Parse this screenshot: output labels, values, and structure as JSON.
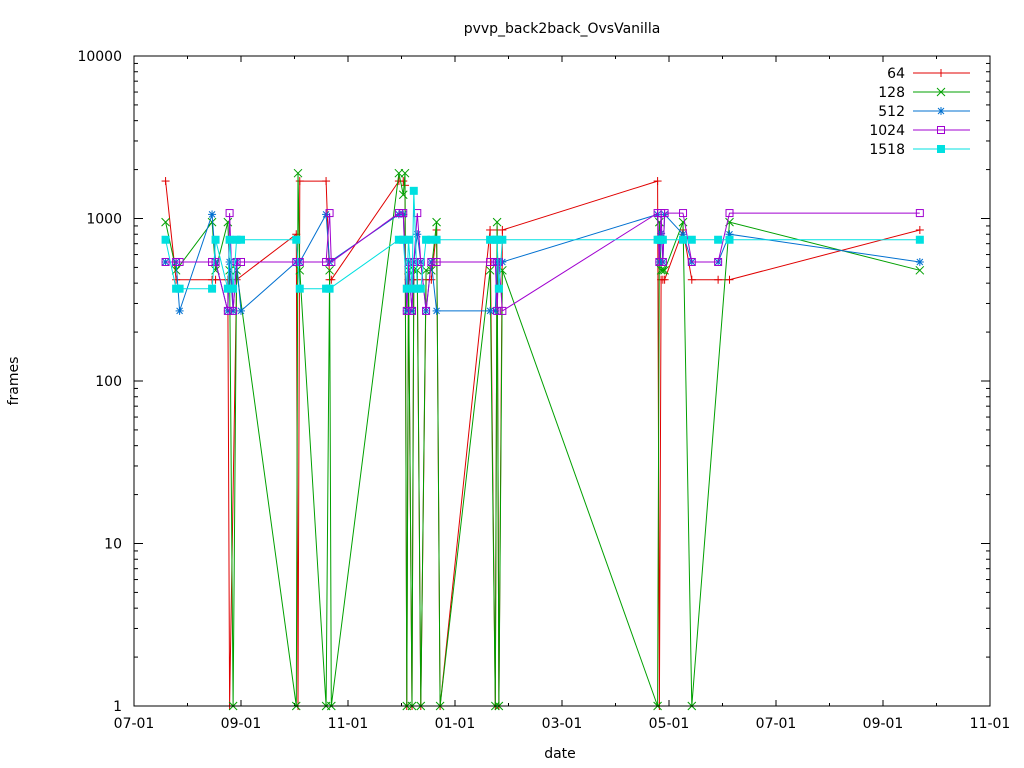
{
  "chart_data": {
    "type": "line",
    "title": "pvvp_back2back_OvsVanilla",
    "xlabel": "date",
    "ylabel": "frames",
    "yscale": "log",
    "ylim": [
      1,
      10000
    ],
    "xlim": [
      "07-01",
      "11-01"
    ],
    "x_ticks": [
      "07-01",
      "09-01",
      "11-01",
      "01-01",
      "03-01",
      "05-01",
      "07-01",
      "09-01",
      "11-01"
    ],
    "y_ticks": [
      "1",
      "10",
      "100",
      "1000",
      "10000"
    ],
    "legend_position": "top-right",
    "colors": {
      "64": "#e00000",
      "128": "#00a000",
      "512": "#0070d0",
      "1024": "#a000d0",
      "1518": "#00e0e0"
    },
    "series": [
      {
        "name": "64",
        "x": [
          "07-19",
          "07-25",
          "08-15",
          "08-17",
          "08-24",
          "08-25",
          "08-29",
          "10-02",
          "10-03",
          "10-04",
          "10-19",
          "10-21",
          "10-22",
          "11-30",
          "12-02",
          "12-03",
          "12-04",
          "12-05",
          "12-07",
          "12-08",
          "12-10",
          "12-12",
          "12-15",
          "12-18",
          "12-21",
          "12-23",
          "01-21",
          "01-24",
          "01-25",
          "01-26",
          "01-28",
          "04-25",
          "04-26",
          "04-27",
          "04-28",
          "04-29",
          "05-09",
          "05-14",
          "05-29",
          "06-05",
          "09-22"
        ],
        "y": [
          1700,
          420,
          420,
          420,
          420,
          1,
          420,
          800,
          1,
          1700,
          1700,
          420,
          420,
          1700,
          1700,
          1600,
          1,
          420,
          1,
          420,
          420,
          1,
          420,
          420,
          850,
          1,
          850,
          1,
          850,
          1,
          850,
          1700,
          1,
          420,
          420,
          420,
          850,
          420,
          420,
          420,
          850
        ]
      },
      {
        "name": "128",
        "x": [
          "07-19",
          "07-25",
          "08-15",
          "08-17",
          "08-24",
          "08-25",
          "08-27",
          "08-29",
          "10-02",
          "10-03",
          "10-04",
          "10-19",
          "10-21",
          "10-22",
          "11-30",
          "12-02",
          "12-03",
          "12-04",
          "12-05",
          "12-07",
          "12-08",
          "12-10",
          "12-12",
          "12-15",
          "12-18",
          "12-21",
          "12-23",
          "01-21",
          "01-24",
          "01-25",
          "01-26",
          "01-28",
          "04-25",
          "04-26",
          "04-27",
          "04-28",
          "04-29",
          "05-09",
          "05-14",
          "06-05",
          "09-22"
        ],
        "y": [
          950,
          480,
          950,
          480,
          950,
          480,
          1,
          480,
          1,
          1900,
          480,
          1,
          480,
          1,
          1900,
          1400,
          1900,
          1,
          480,
          1,
          480,
          480,
          1,
          480,
          480,
          950,
          1,
          480,
          1,
          950,
          1,
          480,
          1,
          950,
          480,
          480,
          480,
          950,
          1,
          950,
          480
        ]
      },
      {
        "name": "512",
        "x": [
          "07-19",
          "07-25",
          "07-27",
          "08-15",
          "08-17",
          "08-24",
          "08-25",
          "08-27",
          "08-29",
          "09-01",
          "10-02",
          "10-04",
          "10-19",
          "10-21",
          "11-30",
          "12-02",
          "12-04",
          "12-05",
          "12-07",
          "12-08",
          "12-10",
          "12-12",
          "12-15",
          "12-18",
          "12-21",
          "01-21",
          "01-24",
          "01-25",
          "01-26",
          "01-28",
          "04-25",
          "04-26",
          "04-27",
          "04-28",
          "04-29",
          "05-09",
          "05-14",
          "05-29",
          "06-05",
          "09-22"
        ],
        "y": [
          540,
          540,
          270,
          1060,
          540,
          270,
          540,
          270,
          540,
          270,
          540,
          540,
          1060,
          540,
          1060,
          1060,
          270,
          540,
          270,
          540,
          800,
          540,
          270,
          540,
          270,
          270,
          270,
          540,
          540,
          540,
          1060,
          540,
          810,
          540,
          1060,
          800,
          540,
          540,
          800,
          540
        ]
      },
      {
        "name": "1024",
        "x": [
          "07-19",
          "07-25",
          "07-27",
          "08-15",
          "08-17",
          "08-24",
          "08-25",
          "08-27",
          "08-29",
          "09-01",
          "10-02",
          "10-04",
          "10-19",
          "10-21",
          "10-22",
          "11-30",
          "12-02",
          "12-04",
          "12-05",
          "12-07",
          "12-08",
          "12-10",
          "12-12",
          "12-15",
          "12-18",
          "12-21",
          "01-21",
          "01-24",
          "01-25",
          "01-26",
          "01-28",
          "04-25",
          "04-26",
          "04-27",
          "04-28",
          "04-29",
          "05-09",
          "05-14",
          "05-29",
          "06-05",
          "09-22"
        ],
        "y": [
          540,
          540,
          540,
          540,
          540,
          270,
          1080,
          270,
          540,
          540,
          540,
          540,
          540,
          1080,
          540,
          1080,
          1080,
          270,
          540,
          270,
          540,
          1080,
          540,
          270,
          540,
          540,
          540,
          540,
          270,
          540,
          270,
          1080,
          540,
          1080,
          540,
          1080,
          1080,
          540,
          540,
          1080,
          1080
        ]
      },
      {
        "name": "1518",
        "x": [
          "07-19",
          "07-25",
          "07-27",
          "08-15",
          "08-17",
          "08-24",
          "08-25",
          "08-27",
          "08-29",
          "09-01",
          "10-02",
          "10-04",
          "10-19",
          "10-21",
          "11-30",
          "12-02",
          "12-04",
          "12-05",
          "12-07",
          "12-08",
          "12-10",
          "12-12",
          "12-15",
          "12-18",
          "12-21",
          "01-21",
          "01-24",
          "01-25",
          "01-26",
          "01-28",
          "04-25",
          "04-26",
          "04-27",
          "04-28",
          "05-09",
          "05-14",
          "05-29",
          "06-05",
          "09-22"
        ],
        "y": [
          740,
          370,
          370,
          370,
          740,
          370,
          740,
          370,
          740,
          740,
          740,
          370,
          370,
          370,
          740,
          740,
          370,
          740,
          370,
          1480,
          370,
          370,
          740,
          740,
          740,
          740,
          740,
          740,
          370,
          740,
          740,
          740,
          740,
          740,
          740,
          740,
          740,
          740,
          740
        ]
      }
    ]
  }
}
